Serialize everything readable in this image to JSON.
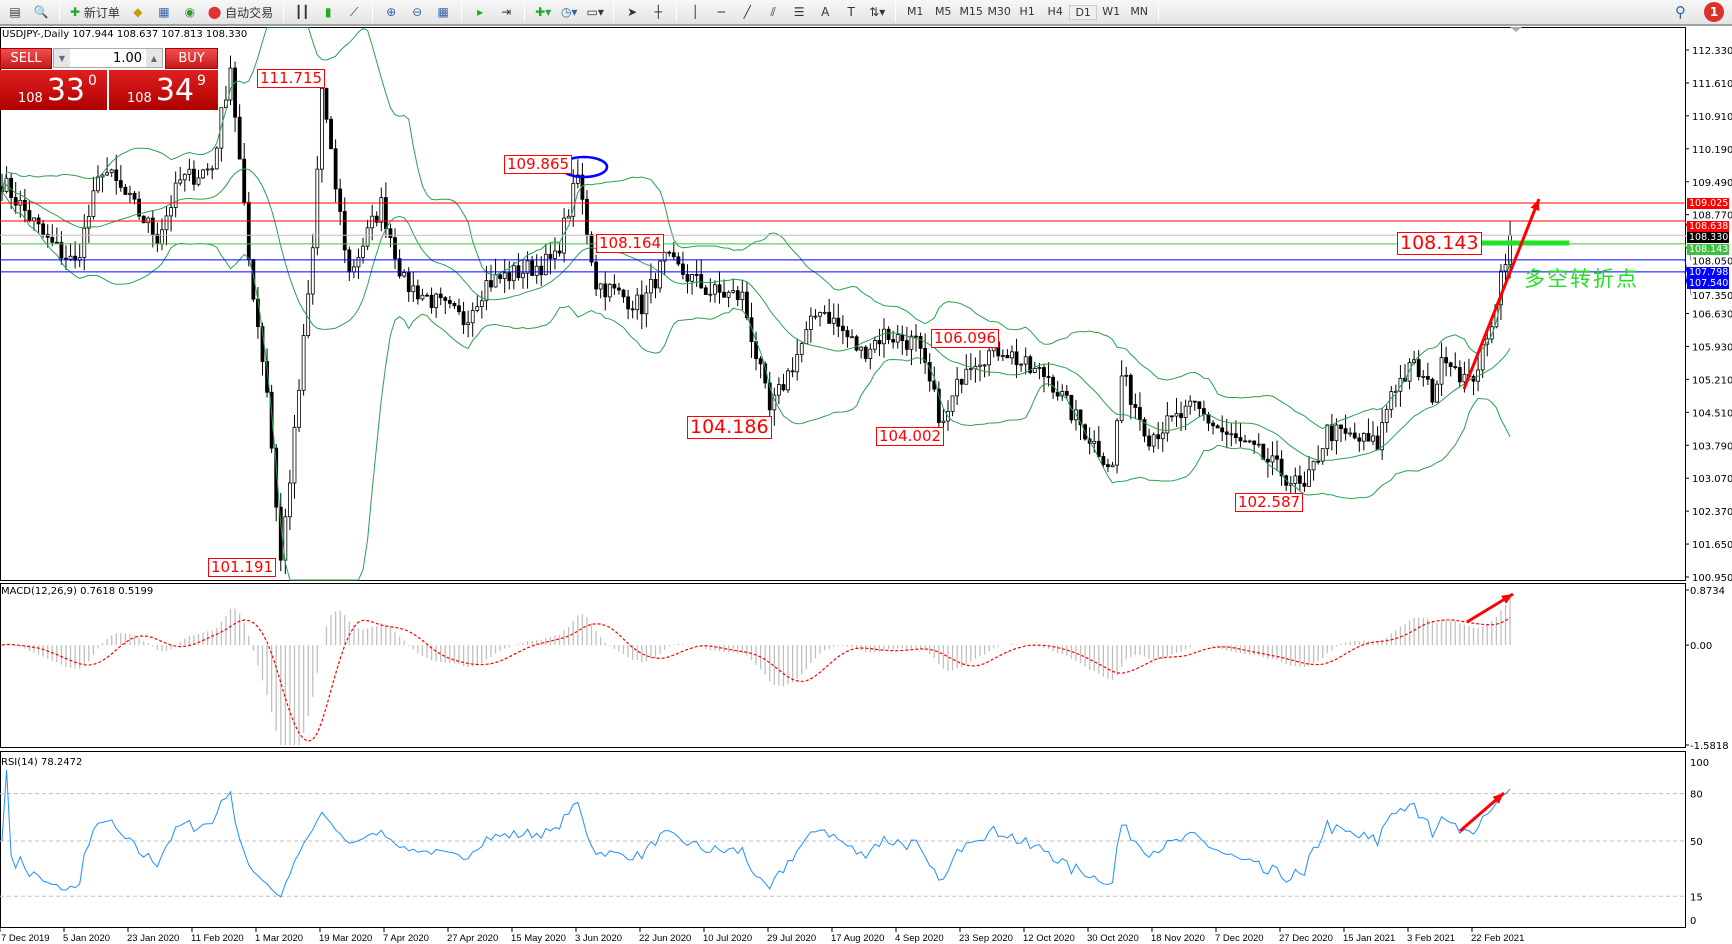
{
  "toolbar": {
    "new_order": "新订单",
    "auto_trading": "自动交易",
    "timeframes": [
      "M1",
      "M5",
      "M15",
      "M30",
      "H1",
      "H4",
      "D1",
      "W1",
      "MN"
    ],
    "active_timeframe": "D1",
    "notifications": "1"
  },
  "chart": {
    "symbol_line": "USDJPY-,Daily  107.944 108.637 107.813 108.330",
    "trade_panel": {
      "sell_label": "SELL",
      "buy_label": "BUY",
      "lot": "1.00",
      "sell_prefix": "108",
      "sell_big": "33",
      "sell_sup": "0",
      "buy_prefix": "108",
      "buy_big": "34",
      "buy_sup": "9"
    },
    "price_axis": [
      "112.330",
      "111.610",
      "110.910",
      "110.190",
      "109.490",
      "108.770",
      "108.050",
      "107.350",
      "106.630",
      "105.930",
      "105.210",
      "104.510",
      "103.790",
      "103.070",
      "102.370",
      "101.650",
      "100.950"
    ],
    "price_range": [
      100.95,
      112.33
    ],
    "levels": [
      {
        "price": 109.025,
        "label": "109.025",
        "color": "#ff0000"
      },
      {
        "price": 108.638,
        "label": "108.638",
        "color": "#ff0000"
      },
      {
        "price": 108.33,
        "label": "108.330",
        "color": "#000000",
        "line": "#c0c0c0"
      },
      {
        "price": 108.143,
        "label": "108.143",
        "color": "#40c040"
      },
      {
        "price": 107.798,
        "label": "107.798",
        "color": "#0000ff"
      },
      {
        "price": 107.54,
        "label": "107.540",
        "color": "#0000ff"
      }
    ],
    "annotations": [
      "111.715",
      "109.865",
      "108.164",
      "104.186",
      "104.002",
      "106.096",
      "102.587",
      "101.191",
      "108.143"
    ],
    "turning_point_text": "多空转折点",
    "price_path": [
      [
        0,
        109.5
      ],
      [
        10,
        108.2
      ],
      [
        16,
        107.7
      ],
      [
        22,
        109.8
      ],
      [
        34,
        108.3
      ],
      [
        39,
        109.5
      ],
      [
        46,
        109.8
      ],
      [
        50,
        112.0
      ],
      [
        54,
        107.8
      ],
      [
        58,
        105
      ],
      [
        61,
        101.3
      ],
      [
        64,
        104
      ],
      [
        68,
        108
      ],
      [
        70,
        111.5
      ],
      [
        72,
        110
      ],
      [
        76,
        107.5
      ],
      [
        83,
        109
      ],
      [
        88,
        107.3
      ],
      [
        101,
        106.5
      ],
      [
        106,
        107.3
      ],
      [
        121,
        107.8
      ],
      [
        126,
        109.6
      ],
      [
        130,
        107.3
      ],
      [
        140,
        106.8
      ],
      [
        145,
        107.8
      ],
      [
        155,
        107.1
      ],
      [
        162,
        107.0
      ],
      [
        168,
        104.5
      ],
      [
        179,
        106.8
      ],
      [
        188,
        105.8
      ],
      [
        193,
        106.2
      ],
      [
        200,
        106.0
      ],
      [
        206,
        104.2
      ],
      [
        211,
        105.6
      ],
      [
        219,
        105.9
      ],
      [
        225,
        105.4
      ],
      [
        229,
        105.3
      ],
      [
        234,
        104.5
      ],
      [
        243,
        103.3
      ],
      [
        245,
        105.3
      ],
      [
        251,
        104.0
      ],
      [
        261,
        104.6
      ],
      [
        268,
        104.0
      ],
      [
        275,
        103.6
      ],
      [
        285,
        102.8
      ],
      [
        290,
        104.1
      ],
      [
        301,
        103.8
      ],
      [
        304,
        105
      ],
      [
        309,
        105.5
      ],
      [
        313,
        104.9
      ],
      [
        316,
        105.8
      ],
      [
        321,
        105.1
      ],
      [
        325,
        106
      ],
      [
        328,
        107.5
      ],
      [
        330,
        108.33
      ]
    ],
    "dates": [
      "7 Dec 2019",
      "5 Jan 2020",
      "23 Jan 2020",
      "11 Feb 2020",
      "1 Mar 2020",
      "19 Mar 2020",
      "7 Apr 2020",
      "27 Apr 2020",
      "15 May 2020",
      "3 Jun 2020",
      "22 Jun 2020",
      "10 Jul 2020",
      "29 Jul 2020",
      "17 Aug 2020",
      "4 Sep 2020",
      "23 Sep 2020",
      "12 Oct 2020",
      "30 Oct 2020",
      "18 Nov 2020",
      "7 Dec 2020",
      "27 Dec 2020",
      "15 Jan 2021",
      "3 Feb 2021",
      "22 Feb 2021"
    ]
  },
  "macd": {
    "title": "MACD(12,26,9) 0.7618 0.5199",
    "axis": [
      "0.8734",
      "0.00",
      "-1.5818"
    ],
    "range": [
      -1.5818,
      0.8734
    ]
  },
  "rsi": {
    "title": "RSI(14) 78.2472",
    "axis": [
      "100",
      "80",
      "50",
      "15",
      "0"
    ]
  },
  "colors": {
    "bands": "#2aa050",
    "signal": "#ff0000",
    "histogram": "#c0c0c0",
    "rsi": "#1e90ff",
    "arrow": "#ff0000",
    "turning": "#22e022"
  }
}
